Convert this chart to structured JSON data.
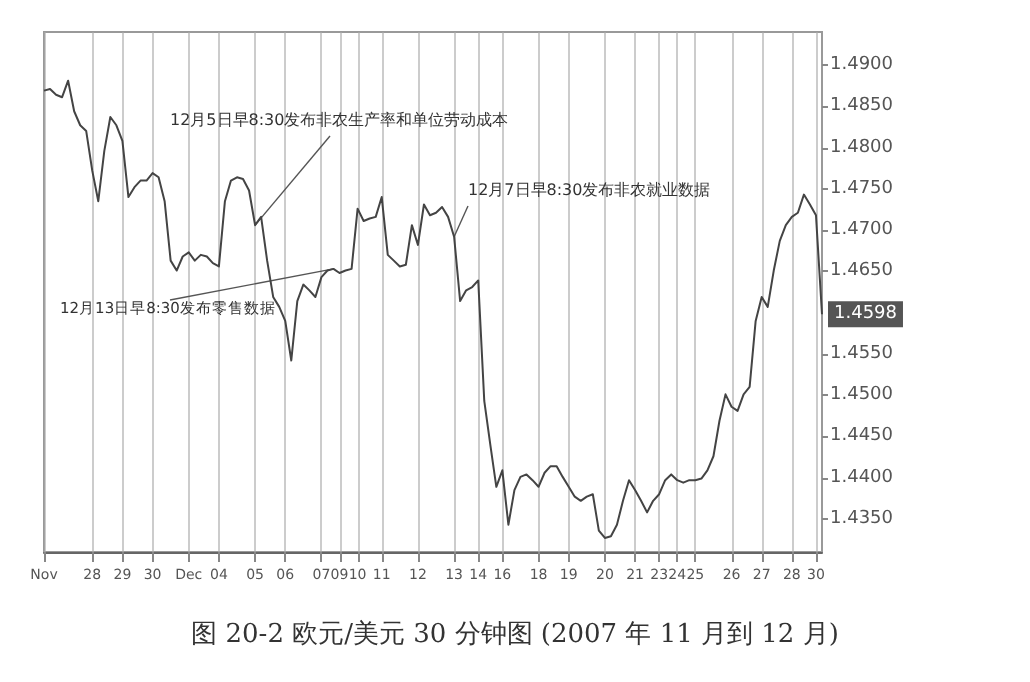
{
  "chart_data": {
    "type": "line",
    "title": "图 20-2 欧元/美元 30 分钟图 (2007 年 11 月到 12 月)",
    "categories": [
      "Nov",
      null,
      null,
      null,
      null,
      null,
      null,
      null,
      "28",
      null,
      null,
      null,
      null,
      "29",
      null,
      null,
      null,
      null,
      "30",
      null,
      null,
      null,
      null,
      null,
      "Dec",
      null,
      null,
      null,
      null,
      "04",
      null,
      null,
      null,
      null,
      null,
      "05",
      null,
      null,
      null,
      null,
      "06",
      null,
      null,
      null,
      null,
      null,
      "07",
      null,
      null,
      "09",
      null,
      null,
      "10",
      null,
      null,
      null,
      "11",
      null,
      null,
      null,
      null,
      null,
      "12",
      null,
      null,
      null,
      null,
      null,
      "13",
      null,
      null,
      null,
      "14",
      null,
      null,
      null,
      "16",
      null,
      null,
      null,
      null,
      null,
      "18",
      null,
      null,
      null,
      null,
      "19",
      null,
      null,
      null,
      null,
      null,
      "20",
      null,
      null,
      null,
      null,
      "21",
      null,
      null,
      null,
      "23",
      null,
      null,
      "24",
      null,
      null,
      "25",
      null,
      null,
      null,
      null,
      null,
      "26",
      null,
      null,
      null,
      null,
      "27",
      null,
      null,
      null,
      null,
      "28",
      null,
      null,
      null,
      "30",
      null
    ],
    "series": [
      {
        "color": "#444444",
        "values": [
          1.4869,
          1.4871,
          1.4864,
          1.4861,
          1.4881,
          1.4844,
          1.4827,
          1.482,
          1.4772,
          1.4735,
          1.4796,
          1.4837,
          1.4827,
          1.4808,
          1.474,
          1.4752,
          1.476,
          1.476,
          1.4769,
          1.4764,
          1.4735,
          1.4663,
          1.4651,
          1.4668,
          1.4673,
          1.4663,
          1.467,
          1.4668,
          1.466,
          1.4656,
          1.4735,
          1.476,
          1.4764,
          1.4762,
          1.4748,
          1.4706,
          1.4716,
          1.4663,
          1.4619,
          1.4607,
          1.459,
          1.4542,
          1.4614,
          1.4634,
          1.4627,
          1.4619,
          1.4643,
          1.4651,
          1.4653,
          1.4648,
          1.4651,
          1.4653,
          1.4726,
          1.4711,
          1.4714,
          1.4716,
          1.474,
          1.467,
          1.4663,
          1.4656,
          1.4658,
          1.4706,
          1.4682,
          1.4731,
          1.4718,
          1.4721,
          1.4728,
          1.4716,
          1.4692,
          1.4614,
          1.4627,
          1.4631,
          1.4639,
          1.4493,
          1.444,
          1.4389,
          1.4409,
          1.4343,
          1.4385,
          1.4401,
          1.4404,
          1.4397,
          1.4389,
          1.4406,
          1.4414,
          1.4414,
          1.4401,
          1.4389,
          1.4377,
          1.4372,
          1.4377,
          1.438,
          1.4336,
          1.4327,
          1.4329,
          1.4343,
          1.4372,
          1.4397,
          1.4385,
          1.4372,
          1.4358,
          1.4372,
          1.438,
          1.4397,
          1.4404,
          1.4397,
          1.4394,
          1.4397,
          1.4397,
          1.4399,
          1.4409,
          1.4426,
          1.4469,
          1.4501,
          1.4486,
          1.4481,
          1.4501,
          1.451,
          1.459,
          1.4619,
          1.4607,
          1.4651,
          1.4687,
          1.4706,
          1.4716,
          1.4721,
          1.4743,
          1.4731,
          1.4718,
          1.4598
        ],
        "value_labels": [
          null,
          null,
          null,
          null,
          null,
          null,
          null,
          null,
          null,
          null,
          null,
          null,
          null,
          null,
          null,
          null,
          null,
          null,
          null,
          null,
          null,
          null,
          null,
          null,
          null,
          null,
          null,
          null,
          null,
          null,
          null,
          null,
          null,
          null,
          null,
          null,
          null,
          null,
          null,
          null,
          null,
          null,
          null,
          null,
          null,
          null,
          null,
          null,
          null,
          null,
          null,
          null,
          null,
          null,
          null,
          null,
          null,
          null,
          null,
          null,
          null,
          null,
          null,
          null,
          null,
          null,
          null,
          null,
          null,
          null,
          null,
          null,
          null,
          null,
          null,
          null,
          null,
          null,
          null,
          null,
          null,
          null,
          null,
          null,
          null,
          null,
          null,
          null,
          null,
          null,
          null,
          null,
          null,
          null,
          null,
          null,
          null,
          null,
          null,
          null,
          null,
          null,
          null,
          null,
          null,
          null,
          null,
          null,
          null,
          null,
          null,
          null,
          null,
          null,
          null,
          null,
          null,
          null,
          null,
          null,
          null,
          null,
          null,
          null,
          null,
          null,
          null,
          null,
          null,
          "1.4598"
        ]
      }
    ],
    "ylim": [
      1.431,
      1.494
    ],
    "yticks": [
      {
        "value": 1.435,
        "label": "1.4350"
      },
      {
        "value": 1.44,
        "label": "1.4400"
      },
      {
        "value": 1.445,
        "label": "1.4450"
      },
      {
        "value": 1.45,
        "label": "1.4500"
      },
      {
        "value": 1.455,
        "label": "1.4550"
      },
      {
        "value": 1.465,
        "label": "1.4650"
      },
      {
        "value": 1.47,
        "label": "1.4700"
      },
      {
        "value": 1.475,
        "label": "1.4750"
      },
      {
        "value": 1.48,
        "label": "1.4800"
      },
      {
        "value": 1.485,
        "label": "1.4850"
      },
      {
        "value": 1.49,
        "label": "1.4900"
      }
    ],
    "annotations": [
      {
        "text": "12月5日早8:30发布非农生产率和单位劳动成本",
        "x": "05",
        "y": 1.4706
      },
      "12月7日早8:30发布非农就业数据",
      {
        "text": "12月13日早8:30发布零售数据",
        "y": 1.4653
      }
    ],
    "grid": "x",
    "marker": "none",
    "line_style": "solid"
  }
}
